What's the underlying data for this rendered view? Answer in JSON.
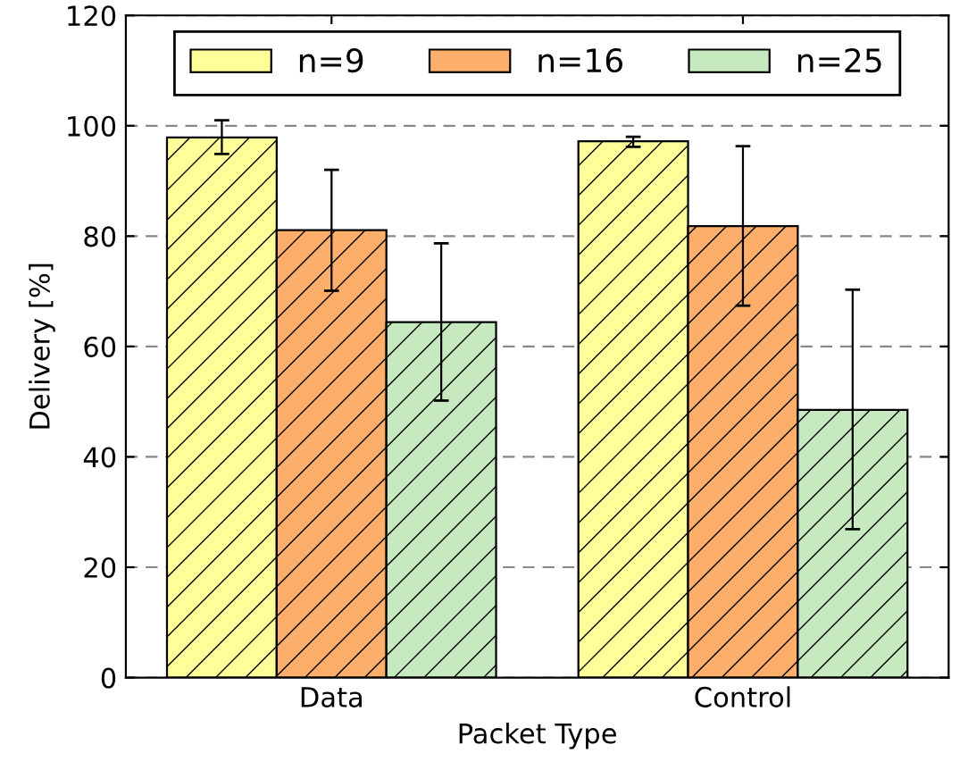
{
  "chart_data": {
    "type": "bar",
    "xlabel": "Packet Type",
    "ylabel": "Delivery [%]",
    "categories": [
      "Data",
      "Control"
    ],
    "series": [
      {
        "name": "n=9",
        "color": "#ffff99",
        "values": [
          97.9,
          97.2
        ],
        "errors": [
          [
            94.9,
            101
          ],
          [
            96.2,
            98.0
          ]
        ]
      },
      {
        "name": "n=16",
        "color": "#fdae6b",
        "values": [
          81.1,
          81.8
        ],
        "errors": [
          [
            70.1,
            92.0
          ],
          [
            67.4,
            96.3
          ]
        ]
      },
      {
        "name": "n=25",
        "color": "#c7e9c0",
        "values": [
          64.4,
          48.5
        ],
        "errors": [
          [
            50.2,
            78.7
          ],
          [
            26.9,
            70.3
          ]
        ]
      }
    ],
    "ylim": [
      0,
      120
    ],
    "yticks": [
      0,
      20,
      40,
      60,
      80,
      100,
      120
    ],
    "grid": "y",
    "legend": "top"
  }
}
